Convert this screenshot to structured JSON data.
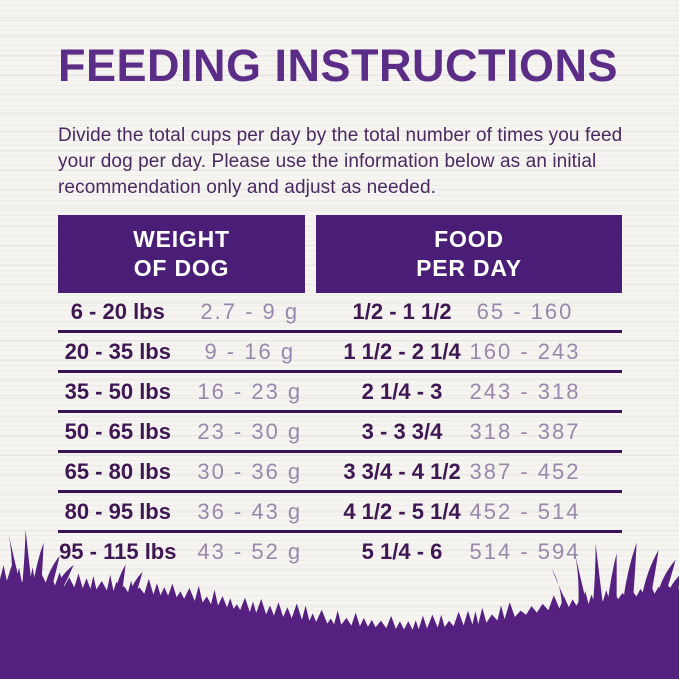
{
  "page": {
    "title": "FEEDING INSTRUCTIONS",
    "intro": "Divide the total cups per day by the total number of times you feed your dog per day. Please use the information below as an initial recommendation only and adjust as needed."
  },
  "table": {
    "headers": [
      {
        "line1": "WEIGHT",
        "line2": "OF DOG"
      },
      {
        "line1": "FOOD",
        "line2": "PER DAY"
      }
    ],
    "rows": [
      {
        "weight": "6 - 20 lbs",
        "grams": "2.7 - 9 g",
        "cups": "1/2 - 1 1/2",
        "grams_per_day": "65 - 160"
      },
      {
        "weight": "20 - 35 lbs",
        "grams": "9 - 16 g",
        "cups": "1 1/2 - 2 1/4",
        "grams_per_day": "160 - 243"
      },
      {
        "weight": "35 - 50 lbs",
        "grams": "16 - 23 g",
        "cups": "2 1/4 - 3",
        "grams_per_day": "243 - 318"
      },
      {
        "weight": "50 - 65 lbs",
        "grams": "23 - 30 g",
        "cups": "3 - 3 3/4",
        "grams_per_day": "318 - 387"
      },
      {
        "weight": "65 - 80 lbs",
        "grams": "30 - 36 g",
        "cups": "3 3/4 - 4 1/2",
        "grams_per_day": "387 - 452"
      },
      {
        "weight": "80 - 95 lbs",
        "grams": "36 - 43 g",
        "cups": "4 1/2 - 5 1/4",
        "grams_per_day": "452 - 514"
      },
      {
        "weight": "95 - 115 lbs",
        "grams": "43 - 52 g",
        "cups": "5 1/4 - 6",
        "grams_per_day": "514 - 594"
      }
    ]
  },
  "colors": {
    "background": "#f5f4f1",
    "title": "#5b2d86",
    "body_text": "#4a2960",
    "header_bg": "#4a1e76",
    "header_text": "#ffffff",
    "row_dark": "#3f1752",
    "row_light": "#9a87ac",
    "divider": "#381455",
    "grass": "#55207f"
  }
}
